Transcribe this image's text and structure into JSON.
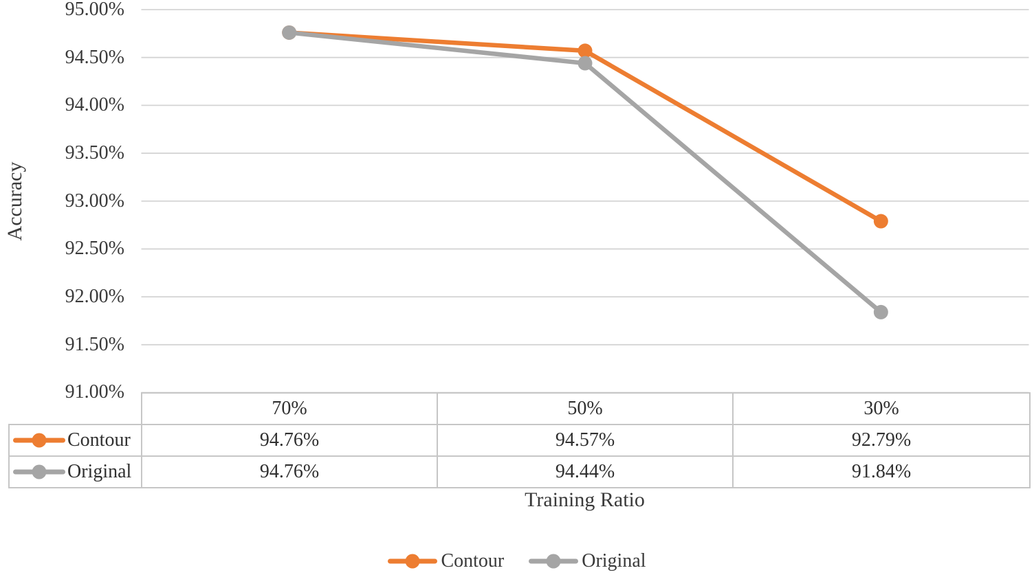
{
  "colors": {
    "contour_orange": "#ED7D31",
    "original_gray": "#A5A5A5",
    "gridline": "#D4D4D4",
    "table_border": "#C6C6C6",
    "text": "#3A3A3A"
  },
  "chart_data": {
    "type": "line",
    "title": "",
    "xlabel": "Training Ratio",
    "ylabel": "Accuracy",
    "categories": [
      "70%",
      "50%",
      "30%"
    ],
    "series": [
      {
        "name": "Contour",
        "color": "#ED7D31",
        "values": [
          94.76,
          94.57,
          92.79
        ]
      },
      {
        "name": "Original",
        "color": "#A5A5A5",
        "values": [
          94.76,
          94.44,
          91.84
        ]
      }
    ],
    "ylim": [
      91.0,
      95.0
    ],
    "ytick_step": 0.5,
    "ytick_labels": [
      "95.00%",
      "94.50%",
      "94.00%",
      "93.50%",
      "93.00%",
      "92.50%",
      "92.00%",
      "91.50%",
      "91.00%"
    ],
    "grid": true,
    "legend_position": "bottom",
    "marker": "circle"
  },
  "data_table": {
    "header": [
      "70%",
      "50%",
      "30%"
    ],
    "rows": [
      {
        "label": "Contour",
        "values": [
          "94.76%",
          "94.57%",
          "92.79%"
        ]
      },
      {
        "label": "Original",
        "values": [
          "94.76%",
          "94.44%",
          "91.84%"
        ]
      }
    ]
  },
  "legend": {
    "items": [
      {
        "label": "Contour"
      },
      {
        "label": "Original"
      }
    ]
  }
}
